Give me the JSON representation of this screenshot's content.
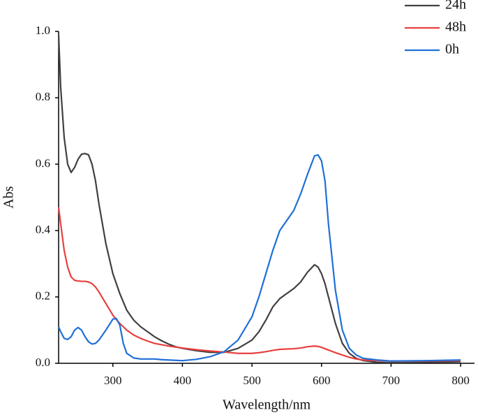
{
  "chart_data": {
    "type": "line",
    "xlabel": "Wavelength/nm",
    "ylabel": "Abs",
    "x": [
      222,
      225,
      230,
      235,
      240,
      245,
      250,
      255,
      260,
      265,
      270,
      275,
      280,
      290,
      300,
      305,
      310,
      315,
      320,
      330,
      340,
      350,
      360,
      370,
      380,
      390,
      400,
      420,
      440,
      460,
      480,
      500,
      510,
      520,
      530,
      540,
      550,
      560,
      570,
      580,
      590,
      595,
      600,
      605,
      610,
      620,
      630,
      640,
      650,
      660,
      680,
      700,
      750,
      800
    ],
    "series": [
      {
        "name": "24h",
        "color": "#404040",
        "values": [
          0.99,
          0.83,
          0.68,
          0.6,
          0.575,
          0.59,
          0.615,
          0.63,
          0.632,
          0.628,
          0.6,
          0.55,
          0.48,
          0.36,
          0.27,
          0.24,
          0.21,
          0.185,
          0.16,
          0.13,
          0.11,
          0.095,
          0.08,
          0.068,
          0.058,
          0.05,
          0.045,
          0.038,
          0.033,
          0.033,
          0.045,
          0.07,
          0.095,
          0.13,
          0.17,
          0.195,
          0.21,
          0.225,
          0.245,
          0.275,
          0.297,
          0.29,
          0.27,
          0.24,
          0.2,
          0.12,
          0.06,
          0.03,
          0.015,
          0.008,
          0.003,
          0.002,
          0.003,
          0.005
        ]
      },
      {
        "name": "48h",
        "color": "#e8403e",
        "values": [
          0.47,
          0.42,
          0.34,
          0.29,
          0.26,
          0.25,
          0.248,
          0.247,
          0.247,
          0.245,
          0.24,
          0.23,
          0.215,
          0.18,
          0.145,
          0.132,
          0.12,
          0.11,
          0.1,
          0.085,
          0.075,
          0.067,
          0.06,
          0.056,
          0.052,
          0.049,
          0.046,
          0.041,
          0.037,
          0.034,
          0.03,
          0.03,
          0.032,
          0.035,
          0.039,
          0.042,
          0.043,
          0.044,
          0.046,
          0.05,
          0.052,
          0.051,
          0.048,
          0.044,
          0.04,
          0.032,
          0.025,
          0.018,
          0.013,
          0.01,
          0.008,
          0.007,
          0.007,
          0.008
        ]
      },
      {
        "name": "0h",
        "color": "#1f6fd8",
        "values": [
          0.11,
          0.095,
          0.075,
          0.072,
          0.08,
          0.1,
          0.108,
          0.1,
          0.08,
          0.065,
          0.058,
          0.06,
          0.07,
          0.1,
          0.133,
          0.135,
          0.115,
          0.06,
          0.03,
          0.016,
          0.013,
          0.013,
          0.013,
          0.011,
          0.01,
          0.009,
          0.008,
          0.012,
          0.02,
          0.035,
          0.07,
          0.14,
          0.2,
          0.27,
          0.34,
          0.4,
          0.43,
          0.46,
          0.51,
          0.57,
          0.625,
          0.628,
          0.61,
          0.55,
          0.42,
          0.22,
          0.1,
          0.045,
          0.025,
          0.015,
          0.01,
          0.007,
          0.008,
          0.01
        ]
      }
    ],
    "xlim": [
      222,
      820
    ],
    "xticks": [
      300,
      400,
      500,
      600,
      700,
      800
    ],
    "ylim": [
      0,
      1.0
    ],
    "yticks": [
      {
        "value": 0,
        "label": "0.0"
      },
      0.2,
      0.4,
      0.6,
      0.8,
      {
        "value": 1.0,
        "label": "1.0"
      }
    ],
    "legend": "upper right"
  }
}
